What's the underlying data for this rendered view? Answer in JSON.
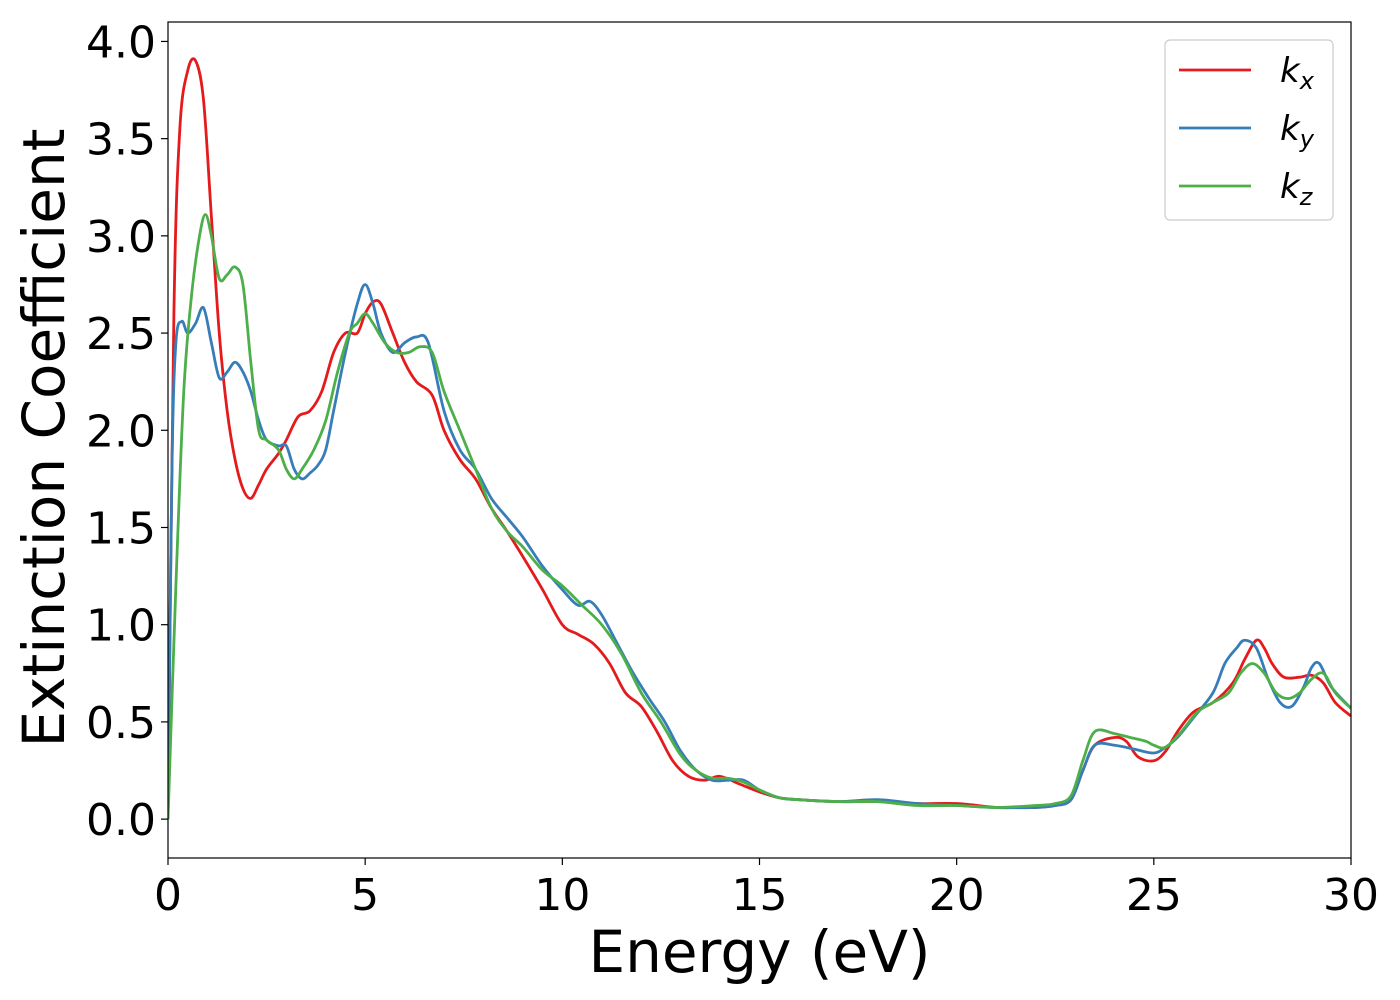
{
  "chart_data": {
    "type": "line",
    "title": "",
    "xlabel": "Energy (eV)",
    "ylabel": "Extinction Coefficient",
    "xlim": [
      0,
      30
    ],
    "ylim": [
      -0.2,
      4.1
    ],
    "xticks": [
      0,
      5,
      10,
      15,
      20,
      25,
      30
    ],
    "xtick_labels": [
      "0",
      "5",
      "10",
      "15",
      "20",
      "25",
      "30"
    ],
    "yticks": [
      0.0,
      0.5,
      1.0,
      1.5,
      2.0,
      2.5,
      3.0,
      3.5,
      4.0
    ],
    "ytick_labels": [
      "0.0",
      "0.5",
      "1.0",
      "1.5",
      "2.0",
      "2.5",
      "3.0",
      "3.5",
      "4.0"
    ],
    "grid": false,
    "legend": {
      "placement": "top-right",
      "entries": [
        {
          "base": "k",
          "sub": "x"
        },
        {
          "base": "k",
          "sub": "y"
        },
        {
          "base": "k",
          "sub": "z"
        }
      ]
    },
    "series": [
      {
        "name": "k_x",
        "color": "#e41a1c",
        "x": [
          0,
          0.15,
          0.3,
          0.5,
          0.7,
          0.9,
          1.1,
          1.3,
          1.5,
          1.7,
          1.9,
          2.1,
          2.3,
          2.5,
          2.8,
          3.0,
          3.3,
          3.6,
          3.9,
          4.2,
          4.5,
          4.8,
          5.0,
          5.2,
          5.4,
          5.7,
          6.0,
          6.3,
          6.7,
          7.0,
          7.4,
          7.8,
          8.2,
          8.6,
          9.0,
          9.5,
          10.0,
          10.4,
          10.8,
          11.2,
          11.6,
          12.0,
          12.4,
          12.8,
          13.2,
          13.6,
          14.0,
          14.5,
          15.0,
          15.5,
          16.0,
          17.0,
          18.0,
          19.0,
          20.0,
          21.0,
          21.5,
          22.0,
          22.5,
          22.9,
          23.2,
          23.5,
          24.0,
          24.3,
          24.6,
          25.0,
          25.3,
          25.6,
          26.0,
          26.5,
          27.0,
          27.3,
          27.6,
          27.8,
          28.0,
          28.3,
          28.7,
          29.0,
          29.3,
          29.6,
          30.0
        ],
        "y": [
          0.0,
          2.6,
          3.55,
          3.85,
          3.9,
          3.7,
          3.1,
          2.5,
          2.1,
          1.85,
          1.7,
          1.65,
          1.72,
          1.8,
          1.88,
          1.95,
          2.07,
          2.1,
          2.2,
          2.4,
          2.5,
          2.5,
          2.6,
          2.66,
          2.65,
          2.5,
          2.35,
          2.25,
          2.18,
          2.0,
          1.85,
          1.75,
          1.6,
          1.48,
          1.35,
          1.18,
          1.0,
          0.95,
          0.9,
          0.8,
          0.65,
          0.58,
          0.45,
          0.3,
          0.22,
          0.2,
          0.22,
          0.18,
          0.14,
          0.11,
          0.1,
          0.09,
          0.09,
          0.08,
          0.08,
          0.06,
          0.06,
          0.06,
          0.07,
          0.1,
          0.25,
          0.38,
          0.42,
          0.4,
          0.32,
          0.3,
          0.35,
          0.45,
          0.55,
          0.6,
          0.7,
          0.82,
          0.92,
          0.88,
          0.8,
          0.73,
          0.73,
          0.74,
          0.7,
          0.6,
          0.53
        ]
      },
      {
        "name": "k_y",
        "color": "#377eb8",
        "x": [
          0,
          0.1,
          0.2,
          0.35,
          0.5,
          0.7,
          0.9,
          1.1,
          1.3,
          1.5,
          1.7,
          1.9,
          2.1,
          2.3,
          2.5,
          2.8,
          3.0,
          3.2,
          3.4,
          3.6,
          3.8,
          4.0,
          4.2,
          4.5,
          4.8,
          5.0,
          5.2,
          5.4,
          5.7,
          6.0,
          6.3,
          6.6,
          7.0,
          7.4,
          7.8,
          8.2,
          8.6,
          9.0,
          9.5,
          10.0,
          10.4,
          10.7,
          11.0,
          11.4,
          11.8,
          12.2,
          12.6,
          13.0,
          13.4,
          13.8,
          14.2,
          14.6,
          15.0,
          15.5,
          16.0,
          17.0,
          18.0,
          19.0,
          20.0,
          21.0,
          22.0,
          22.5,
          22.9,
          23.2,
          23.5,
          24.0,
          24.5,
          25.0,
          25.3,
          25.6,
          26.0,
          26.5,
          26.8,
          27.1,
          27.3,
          27.6,
          27.9,
          28.2,
          28.5,
          28.8,
          29.0,
          29.2,
          29.5,
          30.0
        ],
        "y": [
          0.0,
          1.8,
          2.45,
          2.56,
          2.5,
          2.55,
          2.63,
          2.45,
          2.27,
          2.3,
          2.35,
          2.3,
          2.2,
          2.05,
          1.95,
          1.92,
          1.92,
          1.8,
          1.75,
          1.78,
          1.82,
          1.9,
          2.1,
          2.4,
          2.65,
          2.75,
          2.65,
          2.5,
          2.4,
          2.45,
          2.48,
          2.45,
          2.1,
          1.9,
          1.8,
          1.65,
          1.55,
          1.45,
          1.3,
          1.18,
          1.1,
          1.12,
          1.05,
          0.9,
          0.75,
          0.62,
          0.5,
          0.35,
          0.25,
          0.2,
          0.2,
          0.2,
          0.15,
          0.11,
          0.1,
          0.09,
          0.1,
          0.08,
          0.07,
          0.06,
          0.06,
          0.07,
          0.1,
          0.25,
          0.38,
          0.38,
          0.36,
          0.34,
          0.37,
          0.42,
          0.52,
          0.65,
          0.8,
          0.88,
          0.92,
          0.88,
          0.72,
          0.6,
          0.58,
          0.68,
          0.78,
          0.8,
          0.68,
          0.57
        ]
      },
      {
        "name": "k_z",
        "color": "#4daf4a",
        "x": [
          0,
          0.2,
          0.4,
          0.6,
          0.8,
          0.95,
          1.1,
          1.3,
          1.5,
          1.7,
          1.9,
          2.1,
          2.3,
          2.5,
          2.8,
          3.0,
          3.2,
          3.4,
          3.7,
          4.0,
          4.3,
          4.6,
          4.8,
          5.0,
          5.2,
          5.5,
          5.8,
          6.1,
          6.4,
          6.7,
          7.0,
          7.4,
          7.8,
          8.2,
          8.6,
          9.0,
          9.5,
          10.0,
          10.5,
          11.0,
          11.5,
          12.0,
          12.5,
          13.0,
          13.4,
          13.8,
          14.2,
          14.6,
          15.0,
          15.5,
          16.0,
          17.0,
          18.0,
          19.0,
          20.0,
          21.0,
          22.0,
          22.5,
          22.9,
          23.2,
          23.5,
          24.0,
          24.4,
          24.8,
          25.0,
          25.3,
          25.7,
          26.1,
          26.5,
          26.9,
          27.2,
          27.5,
          27.8,
          28.1,
          28.4,
          28.7,
          29.0,
          29.3,
          29.6,
          30.0
        ],
        "y": [
          0.0,
          1.2,
          2.2,
          2.7,
          3.0,
          3.11,
          3.0,
          2.78,
          2.8,
          2.84,
          2.75,
          2.35,
          2.0,
          1.95,
          1.9,
          1.8,
          1.75,
          1.8,
          1.9,
          2.05,
          2.3,
          2.5,
          2.55,
          2.6,
          2.55,
          2.45,
          2.4,
          2.4,
          2.43,
          2.4,
          2.2,
          2.0,
          1.8,
          1.6,
          1.48,
          1.4,
          1.28,
          1.2,
          1.1,
          1.0,
          0.85,
          0.65,
          0.5,
          0.33,
          0.25,
          0.21,
          0.21,
          0.19,
          0.15,
          0.11,
          0.1,
          0.09,
          0.09,
          0.07,
          0.07,
          0.06,
          0.07,
          0.08,
          0.12,
          0.3,
          0.45,
          0.44,
          0.42,
          0.4,
          0.38,
          0.37,
          0.45,
          0.55,
          0.6,
          0.65,
          0.75,
          0.8,
          0.75,
          0.65,
          0.62,
          0.65,
          0.72,
          0.75,
          0.65,
          0.57
        ]
      }
    ]
  }
}
